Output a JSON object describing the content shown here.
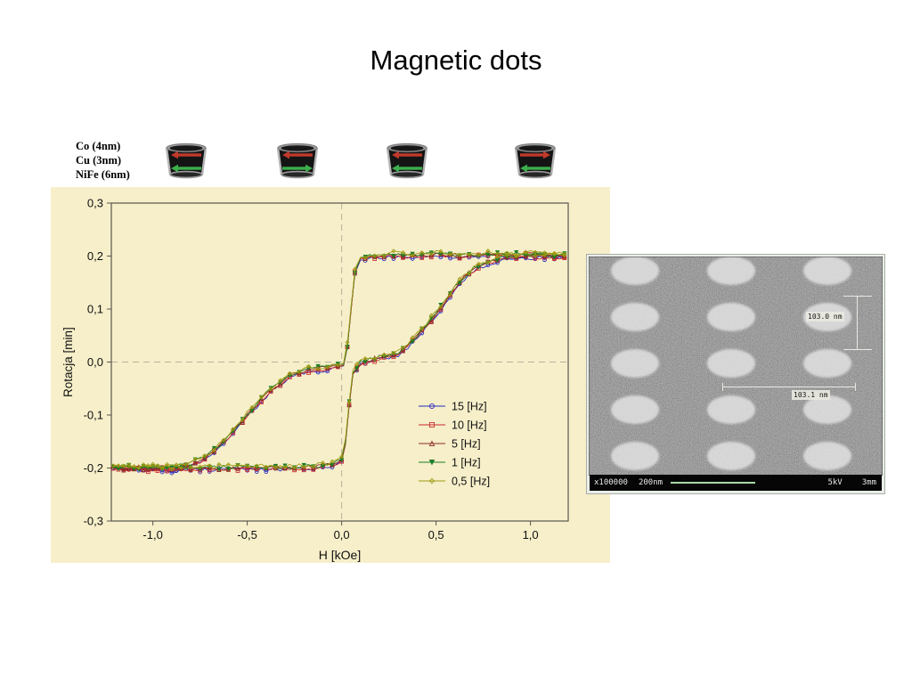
{
  "slide": {
    "title": "Magnetic dots"
  },
  "layer_labels": [
    "Co (4nm)",
    "Cu (3nm)",
    "NiFe (6nm)"
  ],
  "dot_states": [
    {
      "top": "left",
      "bottom": "left"
    },
    {
      "top": "left",
      "bottom": "right"
    },
    {
      "top": "left",
      "bottom": "left"
    },
    {
      "top": "right",
      "bottom": "left"
    }
  ],
  "dot_colors": {
    "top_arrow": "#c0392b",
    "bottom_arrow": "#3cae4c",
    "body": "#141414",
    "rim": "#b5b5b5"
  },
  "chart_data": {
    "type": "line",
    "title": "",
    "xlabel": "H [kOe]",
    "ylabel": "Rotacja [min]",
    "xlim": [
      -1.22,
      1.2
    ],
    "ylim": [
      -0.3,
      0.3
    ],
    "x_ticks": {
      "values": [
        -1.0,
        -0.5,
        0.0,
        0.5,
        1.0
      ],
      "labels": [
        "-1,0",
        "-0,5",
        "0,0",
        "0,5",
        "1,0"
      ]
    },
    "y_ticks": {
      "values": [
        0.3,
        0.2,
        0.1,
        0.0,
        -0.1,
        -0.2,
        -0.3
      ],
      "labels": [
        "0,3",
        "0,2",
        "0,1",
        "0,0",
        "-0,1",
        "-0,2",
        "-0,3"
      ]
    },
    "grid": "dashed lines at H=0 and R=0 only",
    "legend_position": "inside lower-right",
    "plot_bg": "#f6efca",
    "series": [
      {
        "name": "15 [Hz]",
        "color": "#2b2bbf",
        "marker": "circle-open"
      },
      {
        "name": "10 [Hz]",
        "color": "#cc2a2a",
        "marker": "square-open"
      },
      {
        "name": "5 [Hz]",
        "color": "#8f2b21",
        "marker": "triangle-up-open"
      },
      {
        "name": "1 [Hz]",
        "color": "#1f7d27",
        "marker": "triangle-down-filled"
      },
      {
        "name": "0,5 [Hz]",
        "color": "#a09a12",
        "marker": "diamond-open"
      }
    ],
    "note": "All five frequency series trace the same two-step hysteresis loop and overlap almost completely.",
    "loop": {
      "descending": [
        [
          1.18,
          0.2
        ],
        [
          1.1,
          0.201
        ],
        [
          1.0,
          0.205
        ],
        [
          0.9,
          0.2
        ],
        [
          0.8,
          0.204
        ],
        [
          0.7,
          0.2
        ],
        [
          0.6,
          0.201
        ],
        [
          0.5,
          0.204
        ],
        [
          0.4,
          0.2
        ],
        [
          0.3,
          0.203
        ],
        [
          0.2,
          0.2
        ],
        [
          0.15,
          0.199
        ],
        [
          0.1,
          0.195
        ],
        [
          0.07,
          0.17
        ],
        [
          0.05,
          0.1
        ],
        [
          0.03,
          0.03
        ],
        [
          0.01,
          -0.005
        ],
        [
          -0.05,
          -0.01
        ],
        [
          -0.1,
          -0.012
        ],
        [
          -0.15,
          -0.013
        ],
        [
          -0.2,
          -0.016
        ],
        [
          -0.25,
          -0.022
        ],
        [
          -0.3,
          -0.032
        ],
        [
          -0.35,
          -0.046
        ],
        [
          -0.4,
          -0.062
        ],
        [
          -0.45,
          -0.081
        ],
        [
          -0.5,
          -0.1
        ],
        [
          -0.55,
          -0.121
        ],
        [
          -0.6,
          -0.141
        ],
        [
          -0.65,
          -0.16
        ],
        [
          -0.7,
          -0.175
        ],
        [
          -0.75,
          -0.186
        ],
        [
          -0.8,
          -0.193
        ],
        [
          -0.85,
          -0.198
        ],
        [
          -0.9,
          -0.2
        ],
        [
          -1.0,
          -0.202
        ],
        [
          -1.1,
          -0.2
        ],
        [
          -1.21,
          -0.2
        ]
      ],
      "ascending": [
        [
          -1.21,
          -0.2
        ],
        [
          -1.1,
          -0.201
        ],
        [
          -1.0,
          -0.2
        ],
        [
          -0.9,
          -0.202
        ],
        [
          -0.8,
          -0.2
        ],
        [
          -0.7,
          -0.201
        ],
        [
          -0.6,
          -0.2
        ],
        [
          -0.5,
          -0.199
        ],
        [
          -0.4,
          -0.2
        ],
        [
          -0.3,
          -0.2
        ],
        [
          -0.2,
          -0.199
        ],
        [
          -0.15,
          -0.198
        ],
        [
          -0.1,
          -0.197
        ],
        [
          -0.05,
          -0.193
        ],
        [
          0.0,
          -0.185
        ],
        [
          0.02,
          -0.15
        ],
        [
          0.04,
          -0.08
        ],
        [
          0.06,
          -0.02
        ],
        [
          0.1,
          -0.002
        ],
        [
          0.15,
          0.004
        ],
        [
          0.2,
          0.008
        ],
        [
          0.25,
          0.012
        ],
        [
          0.3,
          0.016
        ],
        [
          0.35,
          0.03
        ],
        [
          0.4,
          0.05
        ],
        [
          0.45,
          0.07
        ],
        [
          0.5,
          0.092
        ],
        [
          0.55,
          0.115
        ],
        [
          0.6,
          0.14
        ],
        [
          0.65,
          0.16
        ],
        [
          0.7,
          0.175
        ],
        [
          0.75,
          0.185
        ],
        [
          0.8,
          0.191
        ],
        [
          0.85,
          0.196
        ],
        [
          0.9,
          0.2
        ],
        [
          1.0,
          0.2
        ],
        [
          1.1,
          0.2
        ],
        [
          1.18,
          0.2
        ]
      ]
    }
  },
  "sem": {
    "grid": {
      "rows": 5,
      "cols": 3,
      "dot_shape": "ellipse"
    },
    "measurement_labels": [
      "103.0 nm",
      "103.1 nm"
    ],
    "status_bar": {
      "magnification": "x100000",
      "scale_label": "200nm",
      "voltage": "5kV",
      "stage": "3mm"
    }
  }
}
